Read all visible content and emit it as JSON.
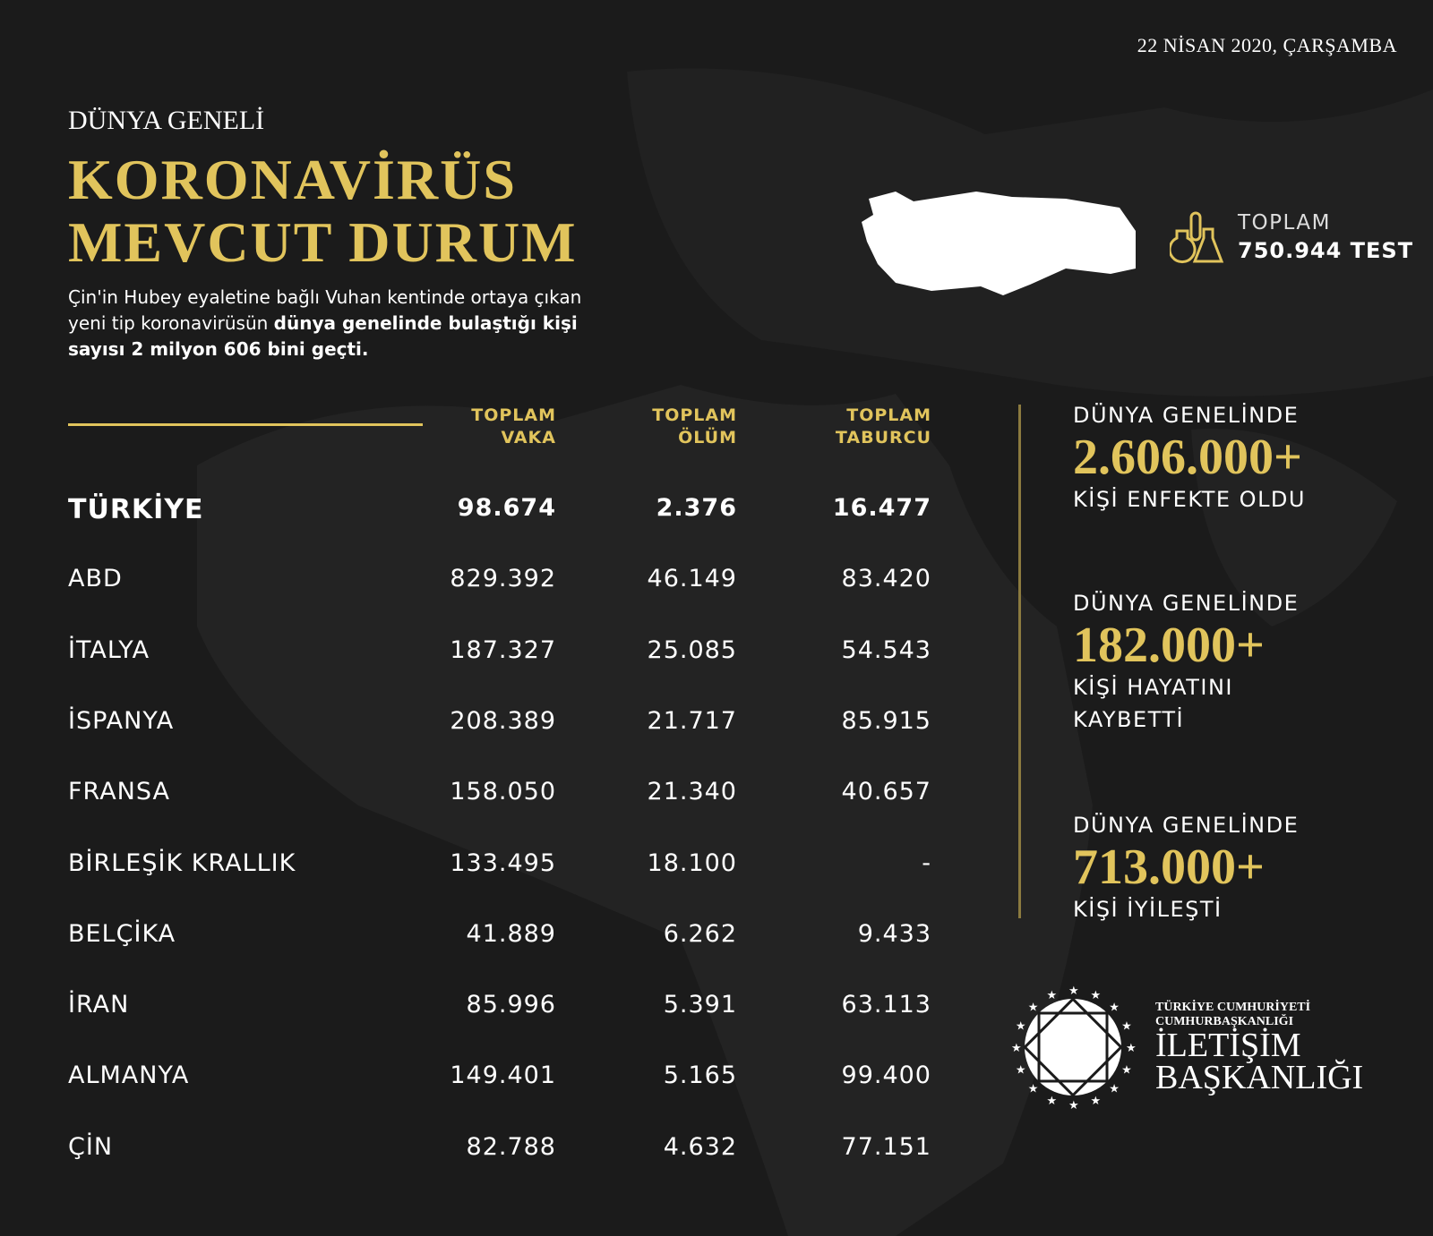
{
  "date": "22 NİSAN 2020, ÇARŞAMBA",
  "subtitle": "DÜNYA GENELİ",
  "title_lines": [
    "KORONAVİRÜS",
    "MEVCUT DURUM"
  ],
  "intro": {
    "normal": "Çin'in Hubey eyaletine bağlı Vuhan kentinde ortaya çıkan yeni tip koronavirüsün ",
    "bold": "dünya genelinde bulaştığı kişi sayısı 2 milyon 606 bini geçti."
  },
  "test": {
    "label": "TOPLAM",
    "value": "750.944 TEST",
    "icon": "flask-icon"
  },
  "table": {
    "headers": [
      [
        "TOPLAM",
        "VAKA"
      ],
      [
        "TOPLAM",
        "ÖLÜM"
      ],
      [
        "TOPLAM",
        "TABURCU"
      ]
    ],
    "rows": [
      [
        "TÜRKİYE",
        "98.674",
        "2.376",
        "16.477"
      ],
      [
        "ABD",
        "829.392",
        "46.149",
        "83.420"
      ],
      [
        "İTALYA",
        "187.327",
        "25.085",
        "54.543"
      ],
      [
        "İSPANYA",
        "208.389",
        "21.717",
        "85.915"
      ],
      [
        "FRANSA",
        "158.050",
        "21.340",
        "40.657"
      ],
      [
        "BİRLEŞİK KRALLIK",
        "133.495",
        "18.100",
        "-"
      ],
      [
        "BELÇİKA",
        "41.889",
        "6.262",
        "9.433"
      ],
      [
        "İRAN",
        "85.996",
        "5.391",
        "63.113"
      ],
      [
        "ALMANYA",
        "149.401",
        "5.165",
        "99.400"
      ],
      [
        "ÇİN",
        "82.788",
        "4.632",
        "77.151"
      ]
    ]
  },
  "stats": [
    {
      "top": "DÜNYA GENELİNDE",
      "value": "2.606.000+",
      "bottom": [
        "KİŞİ ENFEKTE OLDU"
      ]
    },
    {
      "top": "DÜNYA GENELİNDE",
      "value": "182.000+",
      "bottom": [
        "KİŞİ HAYATINI",
        "KAYBETTİ"
      ]
    },
    {
      "top": "DÜNYA GENELİNDE",
      "value": "713.000+",
      "bottom": [
        "KİŞİ İYİLEŞTİ"
      ]
    }
  ],
  "logo": {
    "line1": "TÜRKİYE CUMHURİYETİ",
    "line2": "CUMHURBAŞKANLIĞI",
    "line3": "İLETİŞİM",
    "line4": "BAŞKANLIĞI"
  },
  "colors": {
    "gold": "#e1c45c",
    "background": "#1b1b1b"
  }
}
